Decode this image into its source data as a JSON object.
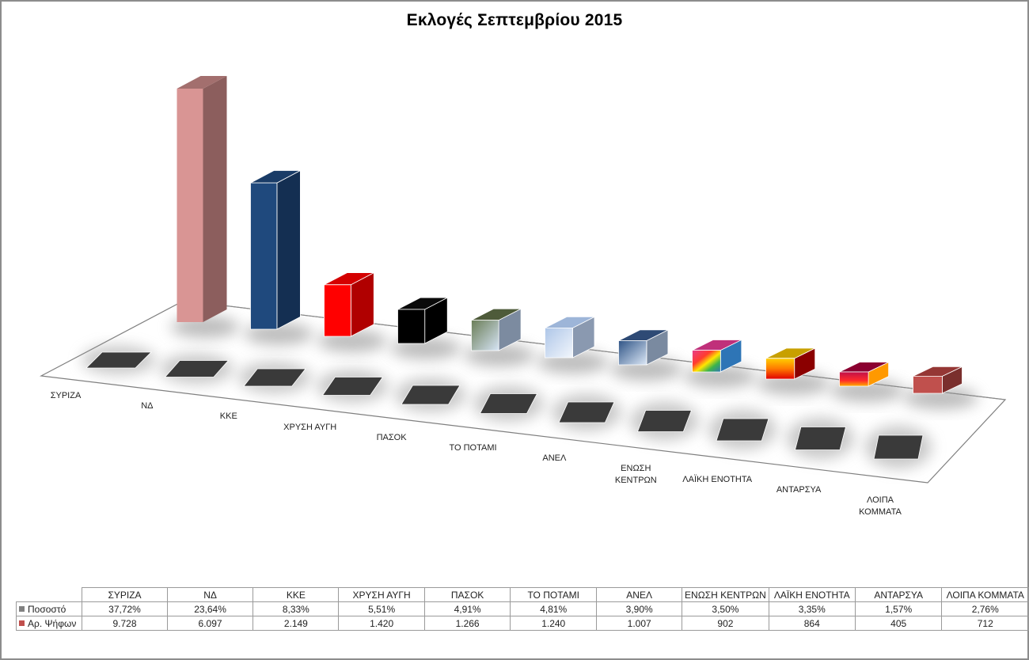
{
  "chart_data": {
    "type": "bar",
    "subtype": "3d-column",
    "title": "Εκλογές Σεπτεμβρίου 2015",
    "xlabel": "",
    "ylabel": "",
    "categories": [
      "ΣΥΡΙΖΑ",
      "ΝΔ",
      "ΚΚΕ",
      "ΧΡΥΣΗ ΑΥΓΗ",
      "ΠΑΣΟΚ",
      "ΤΟ ΠΟΤΑΜΙ",
      "ΑΝΕΛ",
      "ΕΝΩΣΗ ΚΕΝΤΡΩΝ",
      "ΛΑΪΚΗ ΕΝΟΤΗΤΑ",
      "ΑΝΤΑΡΣΥΑ",
      "ΛΟΙΠΑ ΚΟΜΜΑΤΑ"
    ],
    "axis_labels": [
      "ΣΥΡΙΖΑ",
      "ΝΔ",
      "ΚΚΕ",
      "ΧΡΥΣΗ ΑΥΓΗ",
      "ΠΑΣΟΚ",
      "ΤΟ ΠΟΤΑΜΙ",
      "ΑΝΕΛ",
      "ΕΝΩΣΗ\nΚΕΝΤΡΩΝ",
      "ΛΑΪΚΗ ΕΝΟΤΗΤΑ",
      "ΑΝΤΑΡΣΥΑ",
      "ΛΟΙΠΑ\nΚΟΜΜΑΤΑ"
    ],
    "series": [
      {
        "name": "Ποσοστό",
        "legend_color": "#808080",
        "values": [
          37.72,
          23.64,
          8.33,
          5.51,
          4.91,
          4.81,
          3.9,
          3.5,
          3.35,
          1.57,
          2.76
        ],
        "display": [
          "37,72%",
          "23,64%",
          "8,33%",
          "5,51%",
          "4,91%",
          "4,81%",
          "3,90%",
          "3,50%",
          "3,35%",
          "1,57%",
          "2,76%"
        ]
      },
      {
        "name": "Αρ. Ψήφων",
        "legend_color": "#c0504d",
        "values": [
          9728,
          6097,
          2149,
          1420,
          1266,
          1240,
          1007,
          902,
          864,
          405,
          712
        ],
        "display": [
          "9.728",
          "6.097",
          "2.149",
          "1.420",
          "1.266",
          "1.240",
          "1.007",
          "902",
          "864",
          "405",
          "712"
        ]
      }
    ],
    "bar_colors": [
      {
        "front": "#d99594",
        "side": "#8c5e5d",
        "top": "#a36f6e"
      },
      {
        "front": "#1f497d",
        "side": "#142f52",
        "top": "#1a3c67"
      },
      {
        "front": "#ff0000",
        "side": "#b00000",
        "top": "#d40000"
      },
      {
        "front": "#000000",
        "side": "#000000",
        "top": "#0a0a0a"
      },
      {
        "front": "#8ea0b8",
        "side": "#7c8ba0",
        "top": "#4e5b3a"
      },
      {
        "front": "#c6d9f1",
        "side": "#8a99b0",
        "top": "#9db5d8"
      },
      {
        "front": "#95b3d7",
        "side": "#7a8aa0",
        "top": "#2e4a75"
      },
      {
        "front": "#ffcc00",
        "side": "#2e75b6",
        "top": "#c0307a"
      },
      {
        "front": "#ff6600",
        "side": "#8b0000",
        "top": "#c8a000"
      },
      {
        "front": "#e0306a",
        "side": "#ff9900",
        "top": "#8b0030"
      },
      {
        "front": "#c0504d",
        "side": "#7a2f2d",
        "top": "#953735"
      }
    ],
    "data_table": true,
    "legend_position": "data-table",
    "grid": false
  },
  "table": {
    "rows": [
      {
        "label": "Ποσοστό",
        "swatch": "#808080"
      },
      {
        "label": "Αρ. Ψήφων",
        "swatch": "#c0504d"
      }
    ]
  }
}
